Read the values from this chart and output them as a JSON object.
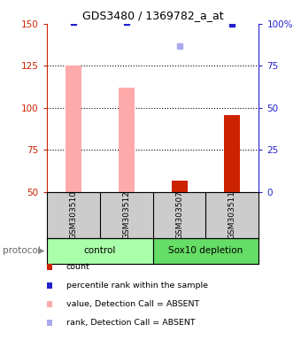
{
  "title": "GDS3480 / 1369782_a_at",
  "samples": [
    "GSM303510",
    "GSM303512",
    "GSM303507",
    "GSM303511"
  ],
  "groups": [
    "control",
    "control",
    "Sox10 depletion",
    "Sox10 depletion"
  ],
  "group_labels": [
    "control",
    "Sox10 depletion"
  ],
  "bar_values": [
    null,
    null,
    57,
    96
  ],
  "pink_bar_values": [
    125,
    112,
    null,
    null
  ],
  "pink_bar_color": "#ffaaaa",
  "pink_bar_absent_value": [
    null,
    null,
    57,
    null
  ],
  "blue_dot_values": [
    101,
    101,
    null,
    100
  ],
  "blue_dot_color": "#2222cc",
  "light_blue_dot_values": [
    null,
    null,
    87,
    null
  ],
  "light_blue_dot_color": "#aaaaee",
  "ylim_left": [
    50,
    150
  ],
  "ylim_right": [
    0,
    100
  ],
  "yticks_left": [
    50,
    75,
    100,
    125,
    150
  ],
  "yticks_right": [
    0,
    25,
    50,
    75,
    100
  ],
  "yticklabels_right": [
    "0",
    "25",
    "50",
    "75",
    "100%"
  ],
  "left_axis_color": "#cc2200",
  "right_axis_color": "#2222cc",
  "dotted_line_values": [
    75,
    100,
    125
  ],
  "group_regions": [
    {
      "xmin": -0.5,
      "xmax": 1.5,
      "label": "control",
      "color": "#aaffaa"
    },
    {
      "xmin": 1.5,
      "xmax": 3.5,
      "label": "Sox10 depletion",
      "color": "#66dd66"
    }
  ],
  "legend_items": [
    {
      "color": "#cc2200",
      "label": "count"
    },
    {
      "color": "#2222cc",
      "label": "percentile rank within the sample"
    },
    {
      "color": "#ffaaaa",
      "label": "value, Detection Call = ABSENT"
    },
    {
      "color": "#aaaaee",
      "label": "rank, Detection Call = ABSENT"
    }
  ],
  "protocol_label": "protocol"
}
